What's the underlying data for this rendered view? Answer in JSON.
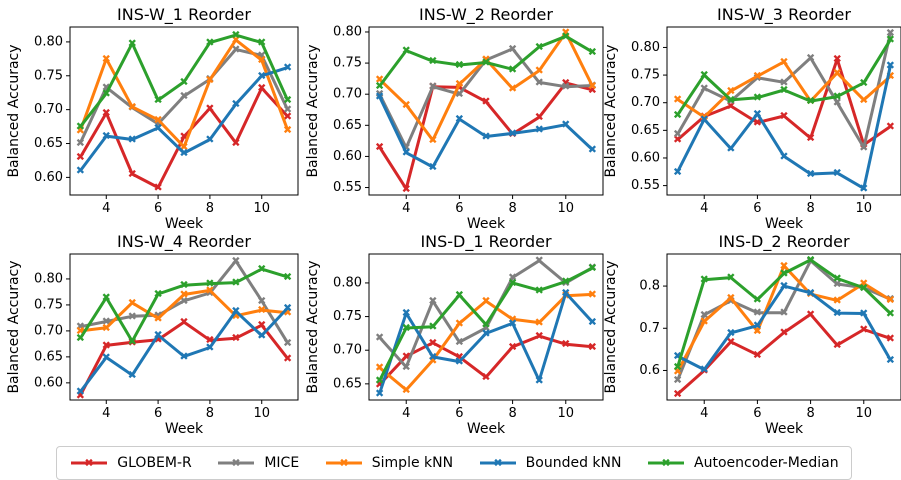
{
  "chart_data": [
    {
      "type": "line",
      "title": "INS-W_1 Reorder",
      "xlabel": "Week",
      "ylabel": "Balanced Accuracy",
      "x": [
        3,
        4,
        5,
        6,
        7,
        8,
        9,
        10,
        11
      ],
      "xticks": [
        4,
        6,
        8,
        10
      ],
      "xlim": [
        2.6,
        11.4
      ],
      "ylim": [
        0.574,
        0.822
      ],
      "yticks": [
        0.6,
        0.65,
        0.7,
        0.75,
        0.8
      ],
      "series": [
        {
          "name": "GLOBEM-R",
          "values": [
            0.63,
            0.695,
            0.605,
            0.585,
            0.66,
            0.702,
            0.651,
            0.732,
            0.69
          ]
        },
        {
          "name": "MICE",
          "values": [
            0.651,
            0.733,
            0.703,
            0.679,
            0.72,
            0.745,
            0.789,
            0.78,
            0.7
          ]
        },
        {
          "name": "Simple kNN",
          "values": [
            0.669,
            0.775,
            0.704,
            0.685,
            0.645,
            0.744,
            0.803,
            0.773,
            0.67
          ]
        },
        {
          "name": "Bounded kNN",
          "values": [
            0.61,
            0.661,
            0.656,
            0.673,
            0.636,
            0.656,
            0.708,
            0.75,
            0.762
          ]
        },
        {
          "name": "Autoencoder-Median",
          "values": [
            0.675,
            0.724,
            0.798,
            0.714,
            0.741,
            0.799,
            0.81,
            0.799,
            0.714
          ]
        }
      ]
    },
    {
      "type": "line",
      "title": "INS-W_2 Reorder",
      "xlabel": "Week",
      "ylabel": "Balanced Accuracy",
      "x": [
        3,
        4,
        5,
        6,
        7,
        8,
        9,
        10,
        11
      ],
      "xticks": [
        4,
        6,
        8,
        10
      ],
      "xlim": [
        2.6,
        11.4
      ],
      "ylim": [
        0.538,
        0.808
      ],
      "yticks": [
        0.55,
        0.6,
        0.65,
        0.7,
        0.75,
        0.8
      ],
      "series": [
        {
          "name": "GLOBEM-R",
          "values": [
            0.615,
            0.548,
            0.712,
            0.711,
            0.688,
            0.636,
            0.663,
            0.718,
            0.707
          ]
        },
        {
          "name": "MICE",
          "values": [
            0.7,
            0.614,
            0.712,
            0.7,
            0.755,
            0.773,
            0.719,
            0.712,
            0.714
          ]
        },
        {
          "name": "Simple kNN",
          "values": [
            0.724,
            0.683,
            0.626,
            0.716,
            0.756,
            0.709,
            0.738,
            0.799,
            0.713
          ]
        },
        {
          "name": "Bounded kNN",
          "values": [
            0.696,
            0.606,
            0.583,
            0.66,
            0.632,
            0.637,
            0.643,
            0.651,
            0.611
          ]
        },
        {
          "name": "Autoencoder-Median",
          "values": [
            0.713,
            0.77,
            0.753,
            0.747,
            0.751,
            0.74,
            0.776,
            0.793,
            0.768
          ]
        }
      ]
    },
    {
      "type": "line",
      "title": "INS-W_3 Reorder",
      "xlabel": "Week",
      "ylabel": "Balanced Accuracy",
      "x": [
        3,
        4,
        5,
        6,
        7,
        8,
        9,
        10,
        11
      ],
      "xticks": [
        4,
        6,
        8,
        10
      ],
      "xlim": [
        2.6,
        11.4
      ],
      "ylim": [
        0.533,
        0.837
      ],
      "yticks": [
        0.55,
        0.6,
        0.65,
        0.7,
        0.75,
        0.8
      ],
      "series": [
        {
          "name": "GLOBEM-R",
          "values": [
            0.633,
            0.675,
            0.694,
            0.664,
            0.676,
            0.636,
            0.779,
            0.624,
            0.657
          ]
        },
        {
          "name": "MICE",
          "values": [
            0.643,
            0.726,
            0.703,
            0.745,
            0.737,
            0.781,
            0.7,
            0.619,
            0.826
          ]
        },
        {
          "name": "Simple kNN",
          "values": [
            0.706,
            0.674,
            0.721,
            0.748,
            0.774,
            0.703,
            0.754,
            0.705,
            0.748
          ]
        },
        {
          "name": "Bounded kNN",
          "values": [
            0.575,
            0.67,
            0.617,
            0.68,
            0.603,
            0.571,
            0.573,
            0.545,
            0.767
          ]
        },
        {
          "name": "Autoencoder-Median",
          "values": [
            0.678,
            0.75,
            0.705,
            0.709,
            0.723,
            0.703,
            0.711,
            0.736,
            0.814
          ]
        }
      ]
    },
    {
      "type": "line",
      "title": "INS-W_4 Reorder",
      "xlabel": "Week",
      "ylabel": "Balanced Accuracy",
      "x": [
        3,
        4,
        5,
        6,
        7,
        8,
        9,
        10,
        11
      ],
      "xticks": [
        4,
        6,
        8,
        10
      ],
      "xlim": [
        2.6,
        11.4
      ],
      "ylim": [
        0.567,
        0.848
      ],
      "yticks": [
        0.6,
        0.65,
        0.7,
        0.75,
        0.8
      ],
      "series": [
        {
          "name": "GLOBEM-R",
          "values": [
            0.576,
            0.672,
            0.678,
            0.683,
            0.717,
            0.682,
            0.686,
            0.711,
            0.647
          ]
        },
        {
          "name": "MICE",
          "values": [
            0.708,
            0.718,
            0.728,
            0.73,
            0.758,
            0.773,
            0.835,
            0.758,
            0.677
          ]
        },
        {
          "name": "Simple kNN",
          "values": [
            0.7,
            0.706,
            0.754,
            0.724,
            0.77,
            0.778,
            0.729,
            0.74,
            0.735
          ]
        },
        {
          "name": "Bounded kNN",
          "values": [
            0.583,
            0.649,
            0.615,
            0.692,
            0.651,
            0.668,
            0.738,
            0.691,
            0.744
          ]
        },
        {
          "name": "Autoencoder-Median",
          "values": [
            0.686,
            0.764,
            0.68,
            0.771,
            0.788,
            0.791,
            0.793,
            0.819,
            0.804
          ]
        }
      ]
    },
    {
      "type": "line",
      "title": "INS-D_1 Reorder",
      "xlabel": "Week",
      "ylabel": "Balanced Accuracy",
      "x": [
        3,
        4,
        5,
        6,
        7,
        8,
        9,
        10,
        11
      ],
      "xticks": [
        4,
        6,
        8,
        10
      ],
      "xlim": [
        2.6,
        11.4
      ],
      "ylim": [
        0.626,
        0.843
      ],
      "yticks": [
        0.65,
        0.7,
        0.75,
        0.8
      ],
      "series": [
        {
          "name": "GLOBEM-R",
          "values": [
            0.649,
            0.691,
            0.711,
            0.69,
            0.66,
            0.705,
            0.721,
            0.709,
            0.705
          ]
        },
        {
          "name": "MICE",
          "values": [
            0.719,
            0.675,
            0.773,
            0.712,
            0.733,
            0.808,
            0.833,
            0.8,
            0.823
          ]
        },
        {
          "name": "Simple kNN",
          "values": [
            0.674,
            0.641,
            0.685,
            0.74,
            0.773,
            0.746,
            0.741,
            0.781,
            0.783
          ]
        },
        {
          "name": "Bounded kNN",
          "values": [
            0.636,
            0.755,
            0.69,
            0.683,
            0.725,
            0.74,
            0.655,
            0.785,
            0.742
          ]
        },
        {
          "name": "Autoencoder-Median",
          "values": [
            0.655,
            0.733,
            0.735,
            0.782,
            0.738,
            0.8,
            0.789,
            0.802,
            0.822
          ]
        }
      ]
    },
    {
      "type": "line",
      "title": "INS-D_2 Reorder",
      "xlabel": "Week",
      "ylabel": "Balanced Accuracy",
      "x": [
        3,
        4,
        5,
        6,
        7,
        8,
        9,
        10,
        11
      ],
      "xticks": [
        4,
        6,
        8,
        10
      ],
      "xlim": [
        2.6,
        11.4
      ],
      "ylim": [
        0.53,
        0.876
      ],
      "yticks": [
        0.6,
        0.7,
        0.8
      ],
      "series": [
        {
          "name": "GLOBEM-R",
          "values": [
            0.544,
            0.6,
            0.668,
            0.637,
            0.69,
            0.733,
            0.66,
            0.697,
            0.676
          ]
        },
        {
          "name": "MICE",
          "values": [
            0.577,
            0.732,
            0.765,
            0.737,
            0.737,
            0.86,
            0.805,
            0.796,
            0.769
          ]
        },
        {
          "name": "Simple kNN",
          "values": [
            0.597,
            0.716,
            0.772,
            0.693,
            0.848,
            0.781,
            0.766,
            0.806,
            0.767
          ]
        },
        {
          "name": "Bounded kNN",
          "values": [
            0.634,
            0.602,
            0.689,
            0.706,
            0.8,
            0.784,
            0.736,
            0.735,
            0.625
          ]
        },
        {
          "name": "Autoencoder-Median",
          "values": [
            0.608,
            0.815,
            0.82,
            0.768,
            0.83,
            0.862,
            0.818,
            0.796,
            0.735
          ]
        }
      ]
    }
  ],
  "legend": {
    "position": "bottom-center",
    "items": [
      {
        "label": "GLOBEM-R",
        "color": "#d62728"
      },
      {
        "label": "MICE",
        "color": "#7f7f7f"
      },
      {
        "label": "Simple kNN",
        "color": "#ff7f0e"
      },
      {
        "label": "Bounded kNN",
        "color": "#1f77b4"
      },
      {
        "label": "Autoencoder-Median",
        "color": "#2ca02c"
      }
    ]
  },
  "colors": {
    "GLOBEM-R": "#d62728",
    "MICE": "#7f7f7f",
    "Simple kNN": "#ff7f0e",
    "Bounded kNN": "#1f77b4",
    "Autoencoder-Median": "#2ca02c"
  }
}
